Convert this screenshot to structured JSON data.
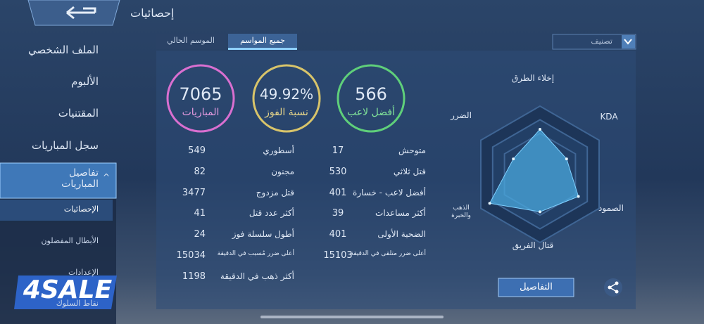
{
  "header": {
    "title": "إحصائيات"
  },
  "sidebar": {
    "items": [
      "الملف الشخصي",
      "الألبوم",
      "المقتنيات",
      "سجل المباريات"
    ],
    "active": "تفاصيل المباريات",
    "subitems": [
      "الإحصائيات",
      "الأبطال المفضلون",
      "الإعدادات",
      "نقاط السلوك"
    ]
  },
  "tabs": [
    "الموسم الحالي",
    "جميع المواسم"
  ],
  "filter": "تصنيف",
  "summary": [
    {
      "value": 7065,
      "label": "المباريات"
    },
    {
      "value": "49.92%",
      "label": "نسبة الفوز"
    },
    {
      "value": 566,
      "label": "أفضل لاعب"
    }
  ],
  "stats": {
    "right": [
      {
        "label": "متوحش",
        "value": 17
      },
      {
        "label": "قتل ثلاثي",
        "value": 530
      },
      {
        "label": "أفضل لاعب - خسارة",
        "value": 401
      },
      {
        "label": "أكثر مساعدات",
        "value": 39
      },
      {
        "label": "الضحية الأولى",
        "value": 401
      },
      {
        "label": "أعلى ضرر متلقى في الدقيقة",
        "value": 15103
      }
    ],
    "left": [
      {
        "label": "أسطوري",
        "value": 549
      },
      {
        "label": "مجنون",
        "value": 82
      },
      {
        "label": "قتل مزدوج",
        "value": 3477
      },
      {
        "label": "أكثر عدد قتل",
        "value": 41
      },
      {
        "label": "أطول سلسلة فوز",
        "value": 24
      },
      {
        "label": "أعلى ضرر مُسبب في الدقيقة",
        "value": 15034
      },
      {
        "label": "أكثر ذهب في الدقيقة",
        "value": 1198
      }
    ]
  },
  "radar": {
    "axes": [
      "إخلاء الطرق",
      "KDA",
      "الصمود",
      "قتال الفريق",
      "الذهب والخبرة",
      "الضرر"
    ],
    "values": [
      0.66,
      0.45,
      0.65,
      0.55,
      0.85,
      0.45
    ],
    "rlim": [
      0,
      1
    ]
  },
  "details_button": "التفاصيل",
  "watermark": "4SALE"
}
